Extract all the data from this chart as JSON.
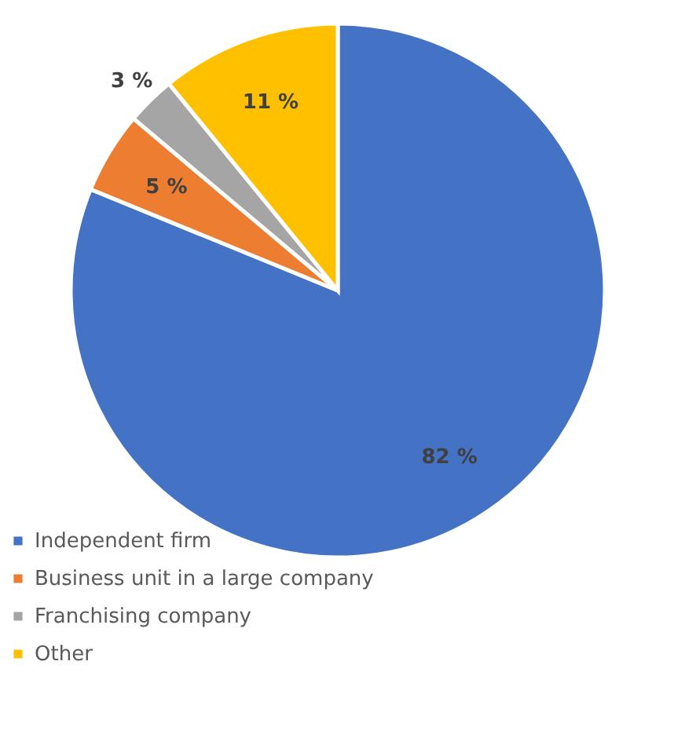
{
  "chart_data": {
    "type": "pie",
    "categories": [
      "Independent firm",
      "Business unit in a large company",
      "Franchising company",
      "Other"
    ],
    "values": [
      82,
      5,
      3,
      11
    ],
    "colors": [
      "#4472c4",
      "#ed7d31",
      "#a5a5a5",
      "#ffc000"
    ],
    "value_labels": [
      "82 %",
      "5 %",
      "3 %",
      "11 %"
    ],
    "legend": "bottom left"
  }
}
